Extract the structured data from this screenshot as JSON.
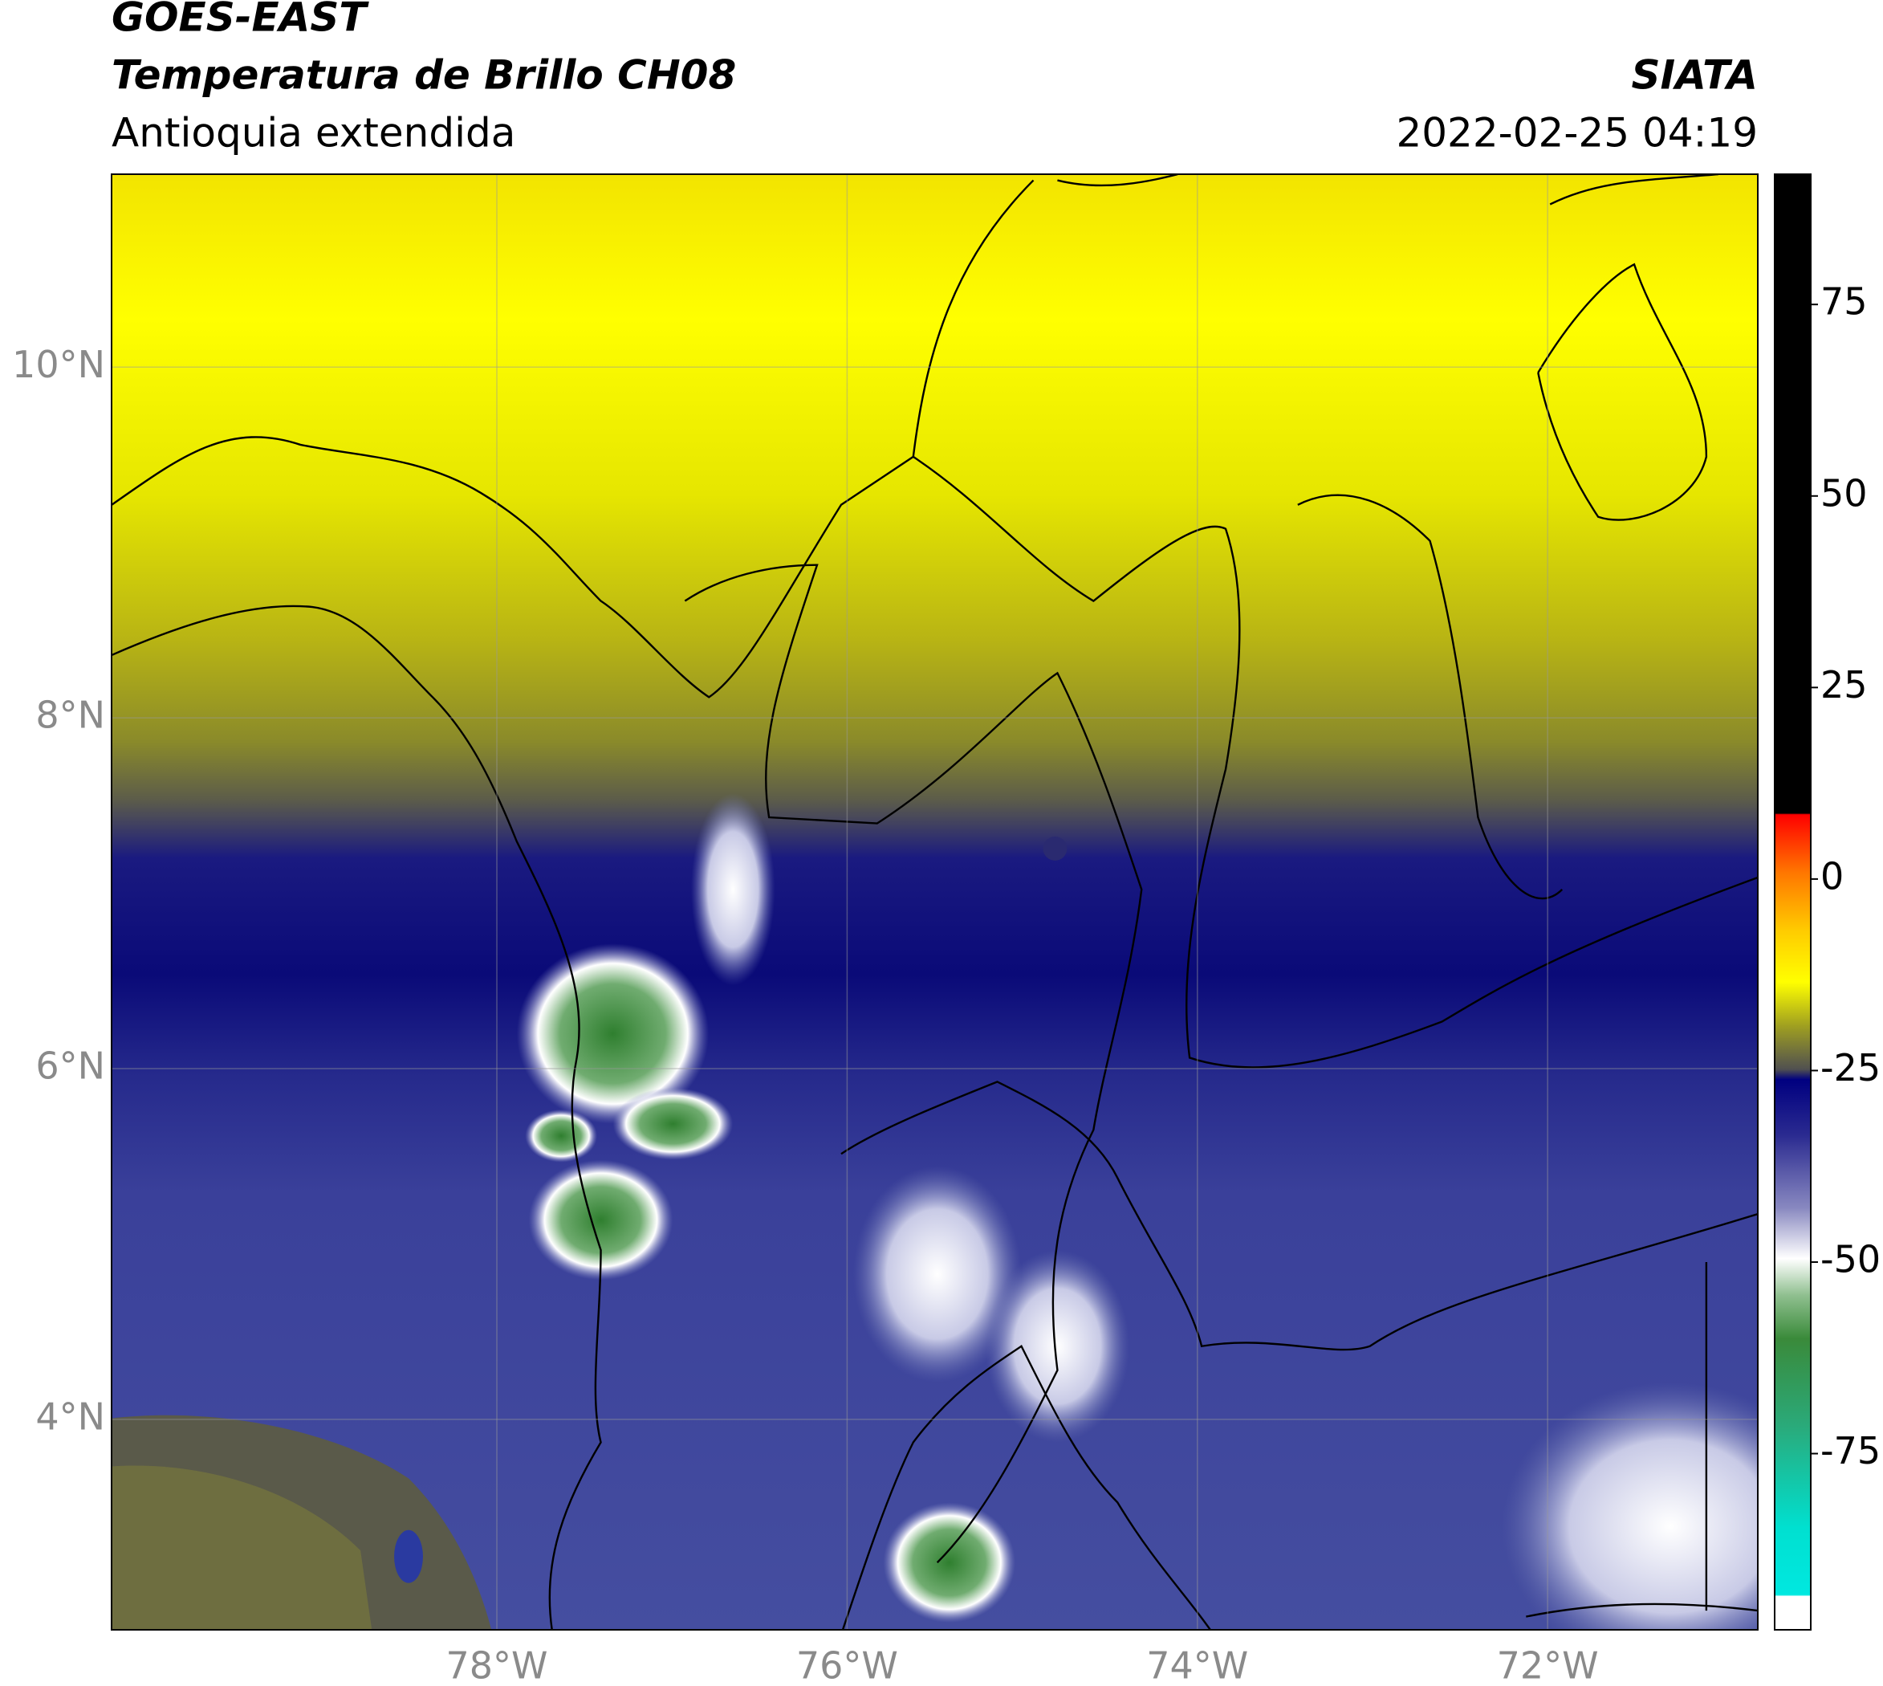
{
  "chart_data": {
    "type": "map",
    "title": "GOES-EAST",
    "subtitle": "Temperatura de Brillo CH08",
    "region": "Antioquia extendida",
    "source": "SIATA",
    "date": "2022-02-25 04:19",
    "xlim": [
      -80.2,
      -70.8
    ],
    "xticks": [
      {
        "value": -78,
        "label": "78°W"
      },
      {
        "value": -76,
        "label": "76°W"
      },
      {
        "value": -74,
        "label": "74°W"
      },
      {
        "value": -72,
        "label": "72°W"
      }
    ],
    "ylim": [
      2.8,
      11.1
    ],
    "yticks": [
      {
        "value": 4,
        "label": "4°N"
      },
      {
        "value": 6,
        "label": "6°N"
      },
      {
        "value": 8,
        "label": "8°N"
      },
      {
        "value": 10,
        "label": "10°N"
      }
    ],
    "grid": true,
    "colorbar": {
      "lim": [
        -98,
        92
      ],
      "ticks": [
        75,
        50,
        25,
        0,
        -25,
        -50,
        -75
      ]
    }
  }
}
